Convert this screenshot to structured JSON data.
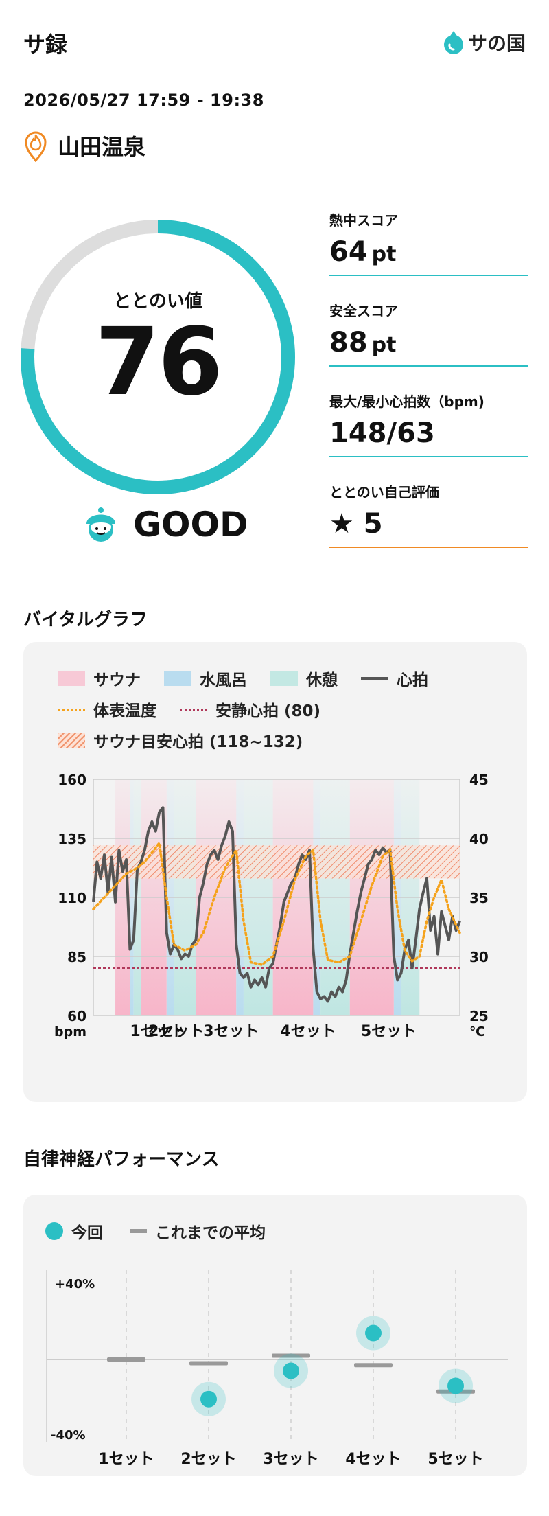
{
  "header": {
    "app_title": "サ録",
    "logo_text": "サの国",
    "logo_icon": "water-drop-icon",
    "datetime": "2026/05/27 17:59 - 19:38",
    "facility_name": "山田温泉",
    "facility_icon": "sauna-flame-pin-icon"
  },
  "score": {
    "label": "ととのい値",
    "value": 76,
    "max": 100,
    "grade": "GOOD",
    "grade_icon": "sauna-hat-face-icon"
  },
  "stats": [
    {
      "label": "熱中スコア",
      "value": "64",
      "unit": "pt"
    },
    {
      "label": "安全スコア",
      "value": "88",
      "unit": "pt"
    },
    {
      "label": "最大/最小心拍数（bpm)",
      "value": "148/63",
      "unit": ""
    },
    {
      "label": "ととのい自己評価",
      "value": "★ 5",
      "unit": ""
    }
  ],
  "colors": {
    "accent": "#2bbfc4",
    "orange": "#f5a21b",
    "sauna": "#f7b5c9",
    "cold_bath": "#b9dcef",
    "rest": "#bfe6e2",
    "heart": "#555555",
    "resting_line": "#b0385a",
    "gauge_track": "#dddddd"
  },
  "vital": {
    "title": "バイタルグラフ",
    "legend": {
      "sauna": "サウナ",
      "cold_bath": "水風呂",
      "rest": "休憩",
      "heart_rate": "心拍",
      "body_temp": "体表温度",
      "resting_hr": "安静心拍 (80)",
      "target": "サウナ目安心拍 (118~132)"
    },
    "y_left_unit": "bpm",
    "y_right_unit": "℃",
    "set_labels": [
      "1セット",
      "2セット",
      "3セット",
      "4セット",
      "5セット"
    ]
  },
  "vital_chart": {
    "type": "line",
    "x_range": [
      0,
      100
    ],
    "y_left": {
      "ticks": [
        160,
        135,
        110,
        85,
        60
      ],
      "range": [
        60,
        160
      ]
    },
    "y_right": {
      "ticks": [
        45,
        40,
        35,
        30,
        25
      ],
      "range": [
        25,
        45
      ]
    },
    "resting_hr": 80,
    "target_hr": [
      118,
      132
    ],
    "phases": [
      {
        "type": "sauna",
        "start": 6,
        "end": 10
      },
      {
        "type": "cold_bath",
        "start": 10,
        "end": 11
      },
      {
        "type": "rest",
        "start": 11,
        "end": 13
      },
      {
        "type": "sauna",
        "start": 13,
        "end": 20
      },
      {
        "type": "cold_bath",
        "start": 20,
        "end": 22
      },
      {
        "type": "rest",
        "start": 22,
        "end": 28
      },
      {
        "type": "sauna",
        "start": 28,
        "end": 39
      },
      {
        "type": "cold_bath",
        "start": 39,
        "end": 41
      },
      {
        "type": "rest",
        "start": 41,
        "end": 49
      },
      {
        "type": "sauna",
        "start": 49,
        "end": 60
      },
      {
        "type": "cold_bath",
        "start": 60,
        "end": 62
      },
      {
        "type": "rest",
        "start": 62,
        "end": 70
      },
      {
        "type": "sauna",
        "start": 70,
        "end": 82
      },
      {
        "type": "cold_bath",
        "start": 82,
        "end": 84
      },
      {
        "type": "rest",
        "start": 84,
        "end": 89
      }
    ],
    "set_label_positions": [
      10,
      15,
      30,
      51,
      73
    ],
    "heart_rate": [
      [
        0,
        108
      ],
      [
        1,
        125
      ],
      [
        2,
        118
      ],
      [
        3,
        128
      ],
      [
        4,
        112
      ],
      [
        5,
        127
      ],
      [
        6,
        108
      ],
      [
        7,
        130
      ],
      [
        8,
        121
      ],
      [
        9,
        126
      ],
      [
        10,
        88
      ],
      [
        11,
        92
      ],
      [
        12,
        122
      ],
      [
        13,
        125
      ],
      [
        14,
        130
      ],
      [
        15,
        138
      ],
      [
        16,
        142
      ],
      [
        17,
        138
      ],
      [
        18,
        146
      ],
      [
        19,
        148
      ],
      [
        20,
        95
      ],
      [
        21,
        86
      ],
      [
        22,
        90
      ],
      [
        23,
        88
      ],
      [
        24,
        84
      ],
      [
        25,
        86
      ],
      [
        26,
        85
      ],
      [
        27,
        90
      ],
      [
        28,
        92
      ],
      [
        29,
        110
      ],
      [
        30,
        116
      ],
      [
        31,
        124
      ],
      [
        32,
        128
      ],
      [
        33,
        130
      ],
      [
        34,
        126
      ],
      [
        35,
        132
      ],
      [
        36,
        136
      ],
      [
        37,
        142
      ],
      [
        38,
        138
      ],
      [
        39,
        90
      ],
      [
        40,
        78
      ],
      [
        41,
        76
      ],
      [
        42,
        78
      ],
      [
        43,
        72
      ],
      [
        44,
        75
      ],
      [
        45,
        73
      ],
      [
        46,
        76
      ],
      [
        47,
        72
      ],
      [
        48,
        80
      ],
      [
        49,
        82
      ],
      [
        50,
        90
      ],
      [
        51,
        98
      ],
      [
        52,
        108
      ],
      [
        53,
        112
      ],
      [
        54,
        116
      ],
      [
        55,
        118
      ],
      [
        56,
        124
      ],
      [
        57,
        128
      ],
      [
        58,
        126
      ],
      [
        59,
        130
      ],
      [
        60,
        88
      ],
      [
        61,
        70
      ],
      [
        62,
        67
      ],
      [
        63,
        68
      ],
      [
        64,
        66
      ],
      [
        65,
        70
      ],
      [
        66,
        68
      ],
      [
        67,
        72
      ],
      [
        68,
        70
      ],
      [
        69,
        75
      ],
      [
        70,
        86
      ],
      [
        71,
        95
      ],
      [
        72,
        104
      ],
      [
        73,
        112
      ],
      [
        74,
        118
      ],
      [
        75,
        124
      ],
      [
        76,
        126
      ],
      [
        77,
        130
      ],
      [
        78,
        128
      ],
      [
        79,
        131
      ],
      [
        80,
        129
      ],
      [
        81,
        130
      ],
      [
        82,
        85
      ],
      [
        83,
        75
      ],
      [
        84,
        78
      ],
      [
        85,
        88
      ],
      [
        86,
        92
      ],
      [
        87,
        80
      ],
      [
        88,
        92
      ],
      [
        89,
        105
      ],
      [
        90,
        112
      ],
      [
        91,
        118
      ],
      [
        92,
        96
      ],
      [
        93,
        102
      ],
      [
        94,
        86
      ],
      [
        95,
        104
      ],
      [
        96,
        98
      ],
      [
        97,
        92
      ],
      [
        98,
        102
      ],
      [
        99,
        96
      ],
      [
        100,
        100
      ]
    ],
    "body_temp": [
      [
        0,
        34
      ],
      [
        3,
        35
      ],
      [
        6,
        36
      ],
      [
        9,
        37
      ],
      [
        12,
        37.5
      ],
      [
        14,
        38
      ],
      [
        16,
        38.8
      ],
      [
        18,
        39.6
      ],
      [
        20,
        35
      ],
      [
        22,
        31
      ],
      [
        25,
        30.5
      ],
      [
        28,
        31
      ],
      [
        30,
        32
      ],
      [
        33,
        35
      ],
      [
        36,
        37.5
      ],
      [
        39,
        39
      ],
      [
        41,
        33
      ],
      [
        43,
        29.5
      ],
      [
        46,
        29.3
      ],
      [
        49,
        30
      ],
      [
        52,
        33
      ],
      [
        55,
        36.5
      ],
      [
        58,
        38.5
      ],
      [
        60,
        39
      ],
      [
        62,
        33
      ],
      [
        64,
        29.7
      ],
      [
        67,
        29.5
      ],
      [
        70,
        30
      ],
      [
        73,
        33
      ],
      [
        76,
        36
      ],
      [
        79,
        38.5
      ],
      [
        81,
        39
      ],
      [
        83,
        34
      ],
      [
        85,
        30.5
      ],
      [
        87,
        29.6
      ],
      [
        89,
        30
      ],
      [
        91,
        33
      ],
      [
        93,
        35
      ],
      [
        95,
        36.5
      ],
      [
        97,
        34
      ],
      [
        100,
        32
      ]
    ]
  },
  "autonomic": {
    "title": "自律神経パフォーマンス",
    "legend_current": "今回",
    "legend_average": "これまでの平均",
    "y_max_label": "+40%",
    "y_min_label": "-40%"
  },
  "autonomic_chart": {
    "type": "scatter",
    "y_range": [
      -40,
      40
    ],
    "categories": [
      "1セット",
      "2セット",
      "3セット",
      "4セット",
      "5セット"
    ],
    "current": [
      null,
      -21,
      -6,
      14,
      -14
    ],
    "average": [
      0,
      -2,
      2,
      -3,
      -17
    ]
  }
}
